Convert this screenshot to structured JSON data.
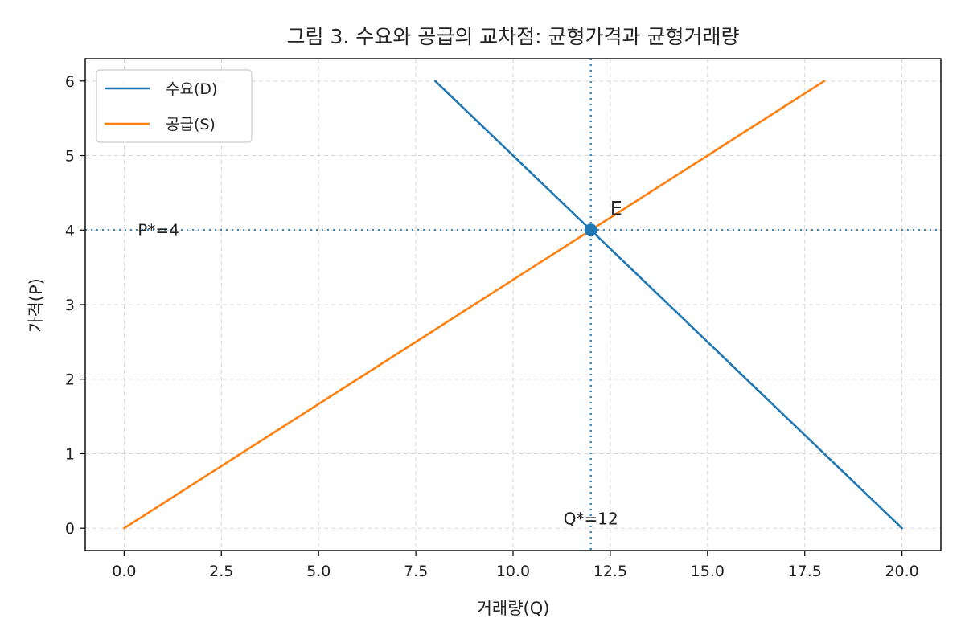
{
  "chart_data": {
    "type": "line",
    "title": "그림 3. 수요와 공급의 교차점: 균형가격과 균형거래량",
    "xlabel": "거래량(Q)",
    "ylabel": "가격(P)",
    "xlim": [
      -1,
      21
    ],
    "ylim": [
      -0.3,
      6.3
    ],
    "xticks": [
      0,
      2.5,
      5,
      7.5,
      10,
      12.5,
      15,
      17.5,
      20
    ],
    "xtick_labels": [
      "0.0",
      "2.5",
      "5.0",
      "7.5",
      "10.0",
      "12.5",
      "15.0",
      "17.5",
      "20.0"
    ],
    "yticks": [
      0,
      1,
      2,
      3,
      4,
      5,
      6
    ],
    "ytick_labels": [
      "0",
      "1",
      "2",
      "3",
      "4",
      "5",
      "6"
    ],
    "grid": true,
    "legend_position": "top-left",
    "series": [
      {
        "name": "수요(D)",
        "color": "#1f77b4",
        "x": [
          8,
          20
        ],
        "y": [
          6,
          0
        ]
      },
      {
        "name": "공급(S)",
        "color": "#ff7f0e",
        "x": [
          0,
          18
        ],
        "y": [
          0,
          6
        ]
      }
    ],
    "equilibrium": {
      "x": 12,
      "y": 4,
      "label": "E",
      "color": "#1f77b4"
    },
    "reference_lines": [
      {
        "orientation": "horizontal",
        "value": 4,
        "label": "P*=4",
        "color": "#1f77b4",
        "style": "dotted"
      },
      {
        "orientation": "vertical",
        "value": 12,
        "label": "Q*=12",
        "color": "#1f77b4",
        "style": "dotted"
      }
    ]
  }
}
